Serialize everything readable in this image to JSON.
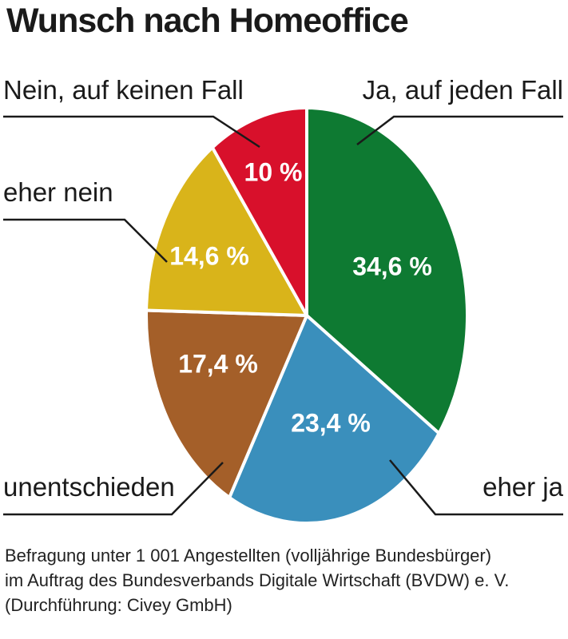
{
  "chart_data": {
    "type": "pie",
    "title": "Wunsch nach Homeoffice",
    "slices": [
      {
        "label": "Ja, auf jeden Fall",
        "value": 34.6,
        "display": "34,6 %",
        "color": "#0e7a32"
      },
      {
        "label": "eher ja",
        "value": 23.4,
        "display": "23,4 %",
        "color": "#3a8fbc"
      },
      {
        "label": "unentschieden",
        "value": 17.4,
        "display": "17,4 %",
        "color": "#a45f29"
      },
      {
        "label": "eher nein",
        "value": 14.6,
        "display": "14,6 %",
        "color": "#d9b41a"
      },
      {
        "label": "Nein, auf keinen Fall",
        "value": 10,
        "display": "10 %",
        "color": "#d8102b"
      }
    ]
  },
  "source_lines": [
    "Befragung unter 1 001 Angestellten (volljährige Bundesbürger)",
    "im Auftrag des Bundesverbands Digitale Wirtschaft (BVDW) e. V.",
    "(Durchführung: Civey GmbH)"
  ]
}
